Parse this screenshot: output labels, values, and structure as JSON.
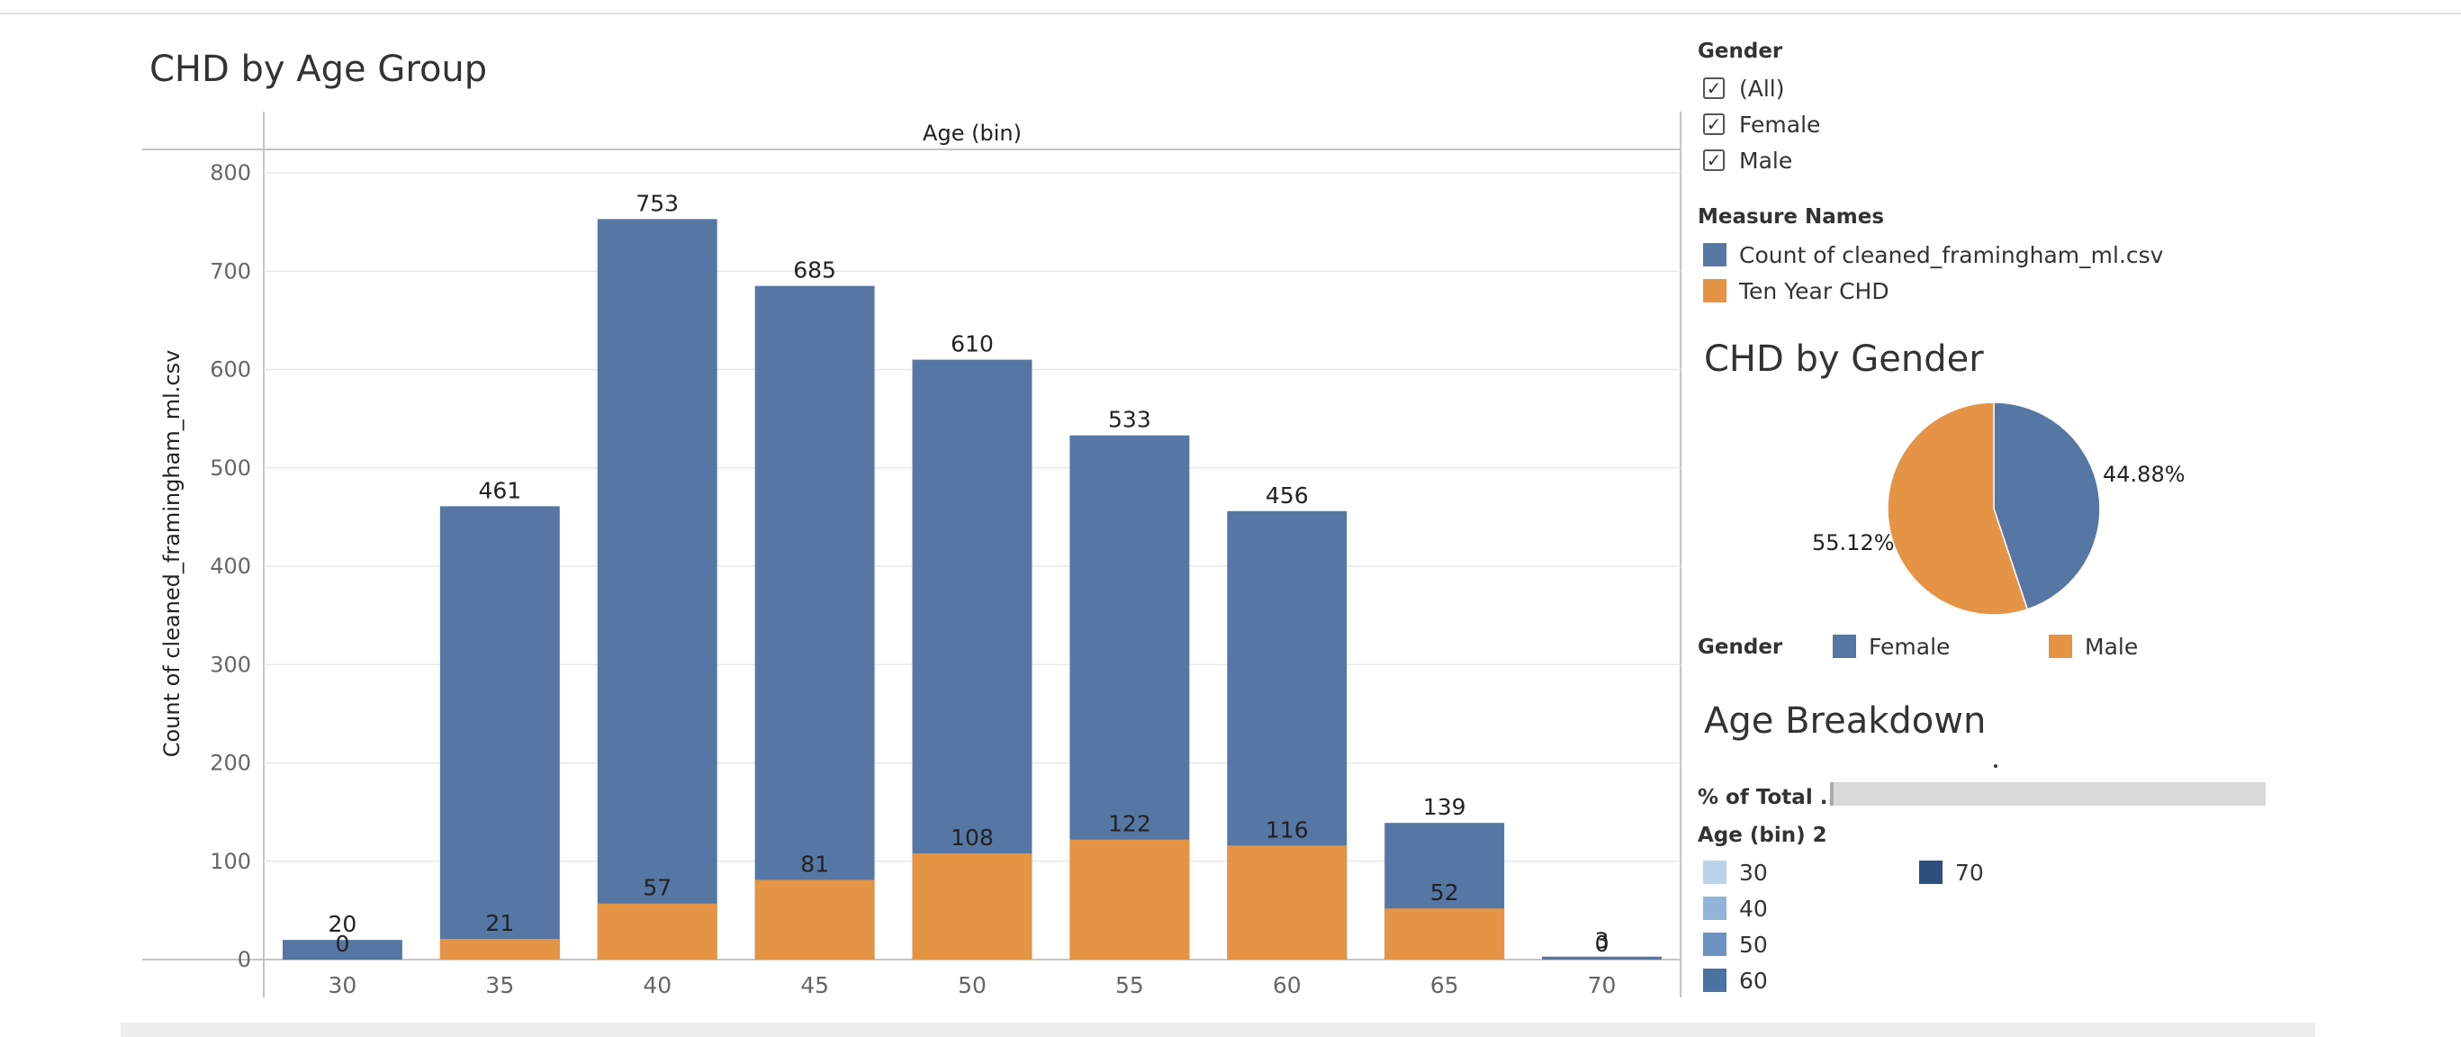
{
  "titles": {
    "bar_chart": "CHD by Age Group",
    "pie_chart": "CHD by Gender",
    "age_breakdown": "Age Breakdown"
  },
  "colors": {
    "count": "#5677a4",
    "chd": "#e49444",
    "grid": "#e8e8e8",
    "axis": "#c4c4c4"
  },
  "chart_data": [
    {
      "type": "bar",
      "title": "CHD by Age Group",
      "column_header": "Age (bin)",
      "xlabel": "",
      "ylabel": "Count of cleaned_framingham_ml.csv",
      "ylim": [
        0,
        800
      ],
      "yticks": [
        0,
        100,
        200,
        300,
        400,
        500,
        600,
        700,
        800
      ],
      "categories": [
        "30",
        "35",
        "40",
        "45",
        "50",
        "55",
        "60",
        "65",
        "70"
      ],
      "series": [
        {
          "name": "Count of cleaned_framingham_ml.csv",
          "color": "#5677a4",
          "values": [
            20,
            461,
            753,
            685,
            610,
            533,
            456,
            139,
            3
          ]
        },
        {
          "name": "Ten Year CHD",
          "color": "#e49444",
          "values": [
            0,
            21,
            57,
            81,
            108,
            122,
            116,
            52,
            0
          ]
        }
      ],
      "data_labels": {
        "count": [
          "20",
          "461",
          "753",
          "685",
          "610",
          "533",
          "456",
          "139",
          "3"
        ],
        "chd": [
          "0",
          "21",
          "57",
          "81",
          "108",
          "122",
          "116",
          "52",
          "0"
        ]
      },
      "grid": true
    },
    {
      "type": "pie",
      "title": "CHD by Gender",
      "slices": [
        {
          "name": "Female",
          "value": 44.88,
          "label": "44.88%",
          "color": "#5677a4"
        },
        {
          "name": "Male",
          "value": 55.12,
          "label": "55.12%",
          "color": "#e49444"
        }
      ]
    },
    {
      "type": "bar",
      "title": "Age Breakdown",
      "ylabel": "% of Total ...",
      "values": [
        100
      ]
    }
  ],
  "filters": {
    "gender": {
      "title": "Gender",
      "items": [
        {
          "label": "(All)",
          "checked": true
        },
        {
          "label": "Female",
          "checked": true
        },
        {
          "label": "Male",
          "checked": true
        }
      ]
    }
  },
  "legends": {
    "measure_names": {
      "title": "Measure Names",
      "items": [
        {
          "label": "Count of cleaned_framingham_ml.csv",
          "color": "#5677a4"
        },
        {
          "label": "Ten Year CHD",
          "color": "#e49444"
        }
      ]
    },
    "pie_gender": {
      "title": "Gender",
      "items": [
        {
          "label": "Female",
          "color": "#5677a4"
        },
        {
          "label": "Male",
          "color": "#e49444"
        }
      ]
    },
    "age_bin2": {
      "title": "Age (bin) 2",
      "items": [
        {
          "label": "30",
          "color": "#b9d4ea"
        },
        {
          "label": "40",
          "color": "#91b4d8"
        },
        {
          "label": "50",
          "color": "#6c93c0"
        },
        {
          "label": "60",
          "color": "#4a72a3"
        },
        {
          "label": "70",
          "color": "#2d4f7e"
        }
      ]
    }
  }
}
